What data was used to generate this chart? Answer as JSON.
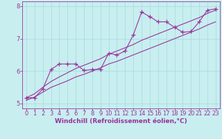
{
  "title": "",
  "xlabel": "Windchill (Refroidissement éolien,°C)",
  "ylabel": "",
  "bg_color": "#c8eef0",
  "grid_color": "#aadddd",
  "line_color": "#993399",
  "x_data": [
    0,
    1,
    2,
    3,
    4,
    5,
    6,
    7,
    8,
    9,
    10,
    11,
    12,
    13,
    14,
    15,
    16,
    17,
    18,
    19,
    20,
    21,
    22,
    23
  ],
  "y_jagged": [
    5.18,
    5.18,
    5.45,
    6.05,
    6.22,
    6.22,
    6.22,
    6.02,
    6.05,
    6.05,
    6.55,
    6.5,
    6.62,
    7.12,
    7.82,
    7.68,
    7.52,
    7.52,
    7.35,
    7.2,
    7.22,
    7.52,
    7.88,
    7.92
  ],
  "y_smooth_upper": [
    5.18,
    5.3,
    5.5,
    5.68,
    5.82,
    5.95,
    6.08,
    6.18,
    6.28,
    6.38,
    6.52,
    6.62,
    6.72,
    6.82,
    6.95,
    7.05,
    7.15,
    7.25,
    7.35,
    7.45,
    7.55,
    7.65,
    7.78,
    7.88
  ],
  "y_smooth_lower": [
    5.1,
    5.2,
    5.35,
    5.5,
    5.6,
    5.7,
    5.82,
    5.9,
    6.0,
    6.1,
    6.22,
    6.3,
    6.4,
    6.5,
    6.6,
    6.7,
    6.8,
    6.9,
    7.0,
    7.1,
    7.2,
    7.3,
    7.42,
    7.52
  ],
  "xlim": [
    -0.5,
    23.5
  ],
  "ylim": [
    4.85,
    8.15
  ],
  "yticks": [
    5,
    6,
    7,
    8
  ],
  "xticks": [
    0,
    1,
    2,
    3,
    4,
    5,
    6,
    7,
    8,
    9,
    10,
    11,
    12,
    13,
    14,
    15,
    16,
    17,
    18,
    19,
    20,
    21,
    22,
    23
  ],
  "marker": "+",
  "markersize": 4,
  "linewidth": 0.8,
  "xlabel_fontsize": 6.5,
  "tick_fontsize": 6,
  "tick_color": "#993399",
  "label_color": "#993399",
  "spine_color": "#993399"
}
